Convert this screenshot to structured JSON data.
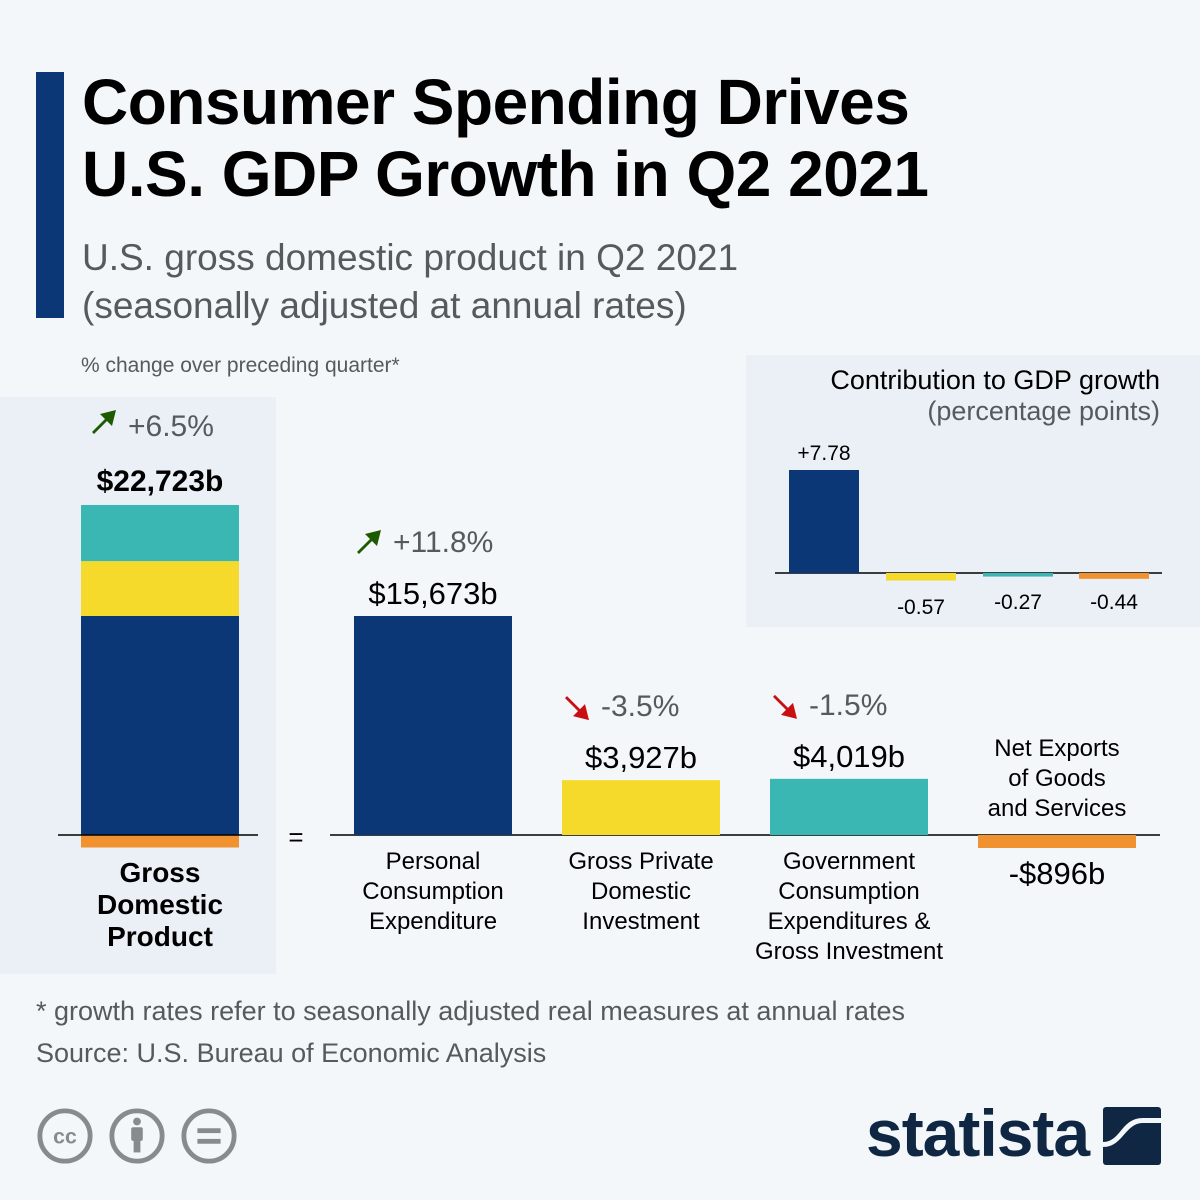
{
  "header": {
    "title_line1": "Consumer Spending Drives",
    "title_line2": "U.S. GDP Growth in Q2 2021",
    "subtitle_line1": "U.S. gross domestic product in Q2 2021",
    "subtitle_line2": "(seasonally adjusted at annual rates)",
    "note": "% change over preceding quarter*"
  },
  "colors": {
    "pce": "#0c3777",
    "investment": "#f6da2b",
    "government": "#3ab7b3",
    "net_exports": "#f0922f",
    "up_arrow": "#1e5b00",
    "down_arrow": "#c80f14",
    "accent": "#0c3777"
  },
  "chart_data": [
    {
      "type": "bar",
      "title": "U.S. gross domestic product in Q2 2021",
      "subtitle": "(seasonally adjusted at annual rates)",
      "ylabel": "USD billions",
      "equals_sign": "=",
      "gdp": {
        "label_lines": [
          "Gross",
          "Domestic",
          "Product"
        ],
        "value": 22723,
        "value_label": "$22,723b",
        "change_label": "+6.5%",
        "change_direction": "up",
        "stack_order": [
          "net_exports",
          "pce",
          "investment",
          "government"
        ]
      },
      "categories": [
        {
          "key": "pce",
          "label_lines": [
            "Personal",
            "Consumption",
            "Expenditure"
          ],
          "value": 15673,
          "value_label": "$15,673b",
          "change_label": "+11.8%",
          "change_direction": "up"
        },
        {
          "key": "investment",
          "label_lines": [
            "Gross Private",
            "Domestic",
            "Investment"
          ],
          "value": 3927,
          "value_label": "$3,927b",
          "change_label": "-3.5%",
          "change_direction": "down"
        },
        {
          "key": "government",
          "label_lines": [
            "Government",
            "Consumption",
            "Expenditures &",
            "Gross Investment"
          ],
          "value": 4019,
          "value_label": "$4,019b",
          "change_label": "-1.5%",
          "change_direction": "down"
        },
        {
          "key": "net_exports",
          "label_lines": [
            "Net Exports",
            "of Goods",
            "and Services"
          ],
          "value": -896,
          "value_label": "-$896b",
          "change_label": null,
          "change_direction": null
        }
      ]
    },
    {
      "type": "bar",
      "title": "Contribution to GDP growth",
      "subtitle": "(percentage points)",
      "categories": [
        "pce",
        "investment",
        "government",
        "net_exports"
      ],
      "values": [
        7.78,
        -0.57,
        -0.27,
        -0.44
      ],
      "value_labels": [
        "+7.78",
        "-0.57",
        "-0.27",
        "-0.44"
      ]
    }
  ],
  "footer": {
    "footnote": "* growth rates refer to seasonally adjusted real measures at annual rates",
    "source": "Source: U.S. Bureau of Economic Analysis",
    "license_icons": [
      "cc-icon",
      "attribution-icon",
      "no-derivatives-icon"
    ],
    "brand": "statista"
  }
}
